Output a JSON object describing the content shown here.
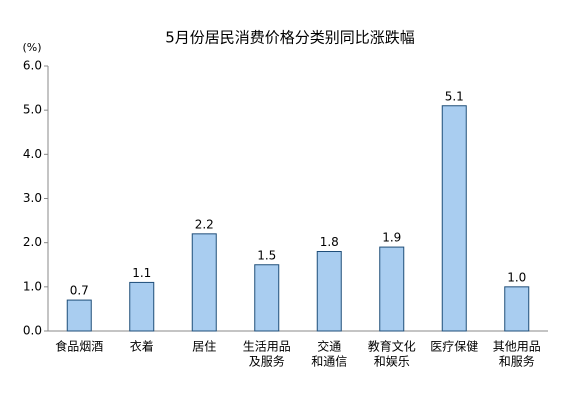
{
  "chart_data": {
    "type": "bar",
    "title": "5月份居民消费价格分类别同比涨跌幅",
    "y_unit": "(%)",
    "categories": [
      [
        "食品烟酒"
      ],
      [
        "衣着"
      ],
      [
        "居住"
      ],
      [
        "生活用品",
        "及服务"
      ],
      [
        "交通",
        "和通信"
      ],
      [
        "教育文化",
        "和娱乐"
      ],
      [
        "医疗保健"
      ],
      [
        "其他用品",
        "和服务"
      ]
    ],
    "values": [
      0.7,
      1.1,
      2.2,
      1.5,
      1.8,
      1.9,
      5.1,
      1.0
    ],
    "value_labels": [
      "0.7",
      "1.1",
      "2.2",
      "1.5",
      "1.8",
      "1.9",
      "5.1",
      "1.0"
    ],
    "color": "#a9cdf0",
    "edge_color": "#1f4e79",
    "ylim": [
      0,
      6
    ],
    "yticks": [
      {
        "value": 0,
        "label": "0.0"
      },
      {
        "value": 1,
        "label": "1.0"
      },
      {
        "value": 2,
        "label": "2.0"
      },
      {
        "value": 3,
        "label": "3.0"
      },
      {
        "value": 4,
        "label": "4.0"
      },
      {
        "value": 5,
        "label": "5.0"
      },
      {
        "value": 6,
        "label": "6.0"
      }
    ],
    "grid": false
  }
}
